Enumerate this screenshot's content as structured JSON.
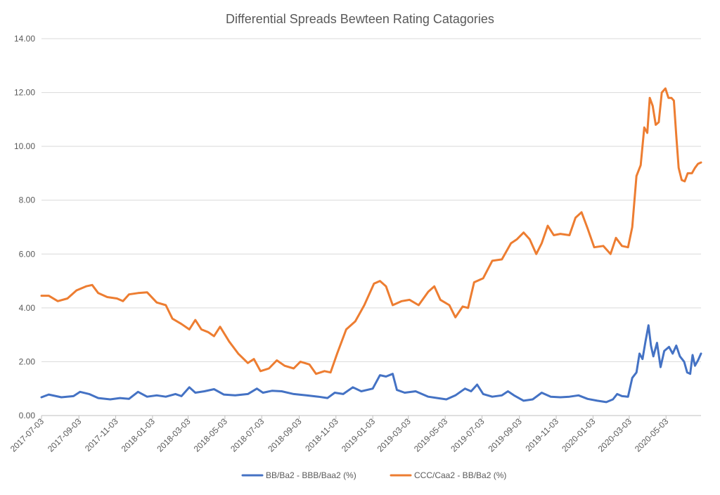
{
  "chart_data": {
    "type": "line",
    "title": "Differential Spreads Bewteen Rating Catagories",
    "xlabel": "",
    "ylabel": "",
    "ylim": [
      0,
      14
    ],
    "yticks": [
      "0.00",
      "2.00",
      "4.00",
      "6.00",
      "8.00",
      "10.00",
      "12.00",
      "14.00"
    ],
    "xlim": [
      "2017-07-03",
      "2020-06-30"
    ],
    "xticks": [
      "2017-07-03",
      "2017-09-03",
      "2017-11-03",
      "2018-01-03",
      "2018-03-03",
      "2018-05-03",
      "2018-07-03",
      "2018-09-03",
      "2018-11-03",
      "2019-01-03",
      "2019-03-03",
      "2019-05-03",
      "2019-07-03",
      "2019-09-03",
      "2019-11-03",
      "2020-01-03",
      "2020-03-03",
      "2020-05-03"
    ],
    "grid": "horizontal",
    "legend": "bottom",
    "series": [
      {
        "name": "BB/Ba2 - BBB/Baa2 (%)",
        "color": "#4472C4",
        "points": [
          [
            "2017-07-03",
            0.68
          ],
          [
            "2017-07-15",
            0.78
          ],
          [
            "2017-08-05",
            0.68
          ],
          [
            "2017-08-25",
            0.72
          ],
          [
            "2017-09-05",
            0.88
          ],
          [
            "2017-09-20",
            0.8
          ],
          [
            "2017-10-05",
            0.65
          ],
          [
            "2017-10-25",
            0.6
          ],
          [
            "2017-11-10",
            0.65
          ],
          [
            "2017-11-25",
            0.62
          ],
          [
            "2017-12-10",
            0.88
          ],
          [
            "2017-12-25",
            0.7
          ],
          [
            "2018-01-10",
            0.75
          ],
          [
            "2018-01-25",
            0.7
          ],
          [
            "2018-02-10",
            0.8
          ],
          [
            "2018-02-20",
            0.72
          ],
          [
            "2018-03-05",
            1.05
          ],
          [
            "2018-03-15",
            0.85
          ],
          [
            "2018-03-30",
            0.9
          ],
          [
            "2018-04-15",
            0.98
          ],
          [
            "2018-05-01",
            0.78
          ],
          [
            "2018-05-20",
            0.75
          ],
          [
            "2018-06-10",
            0.8
          ],
          [
            "2018-06-25",
            1.0
          ],
          [
            "2018-07-05",
            0.85
          ],
          [
            "2018-07-20",
            0.92
          ],
          [
            "2018-08-05",
            0.9
          ],
          [
            "2018-08-25",
            0.8
          ],
          [
            "2018-09-15",
            0.75
          ],
          [
            "2018-10-05",
            0.7
          ],
          [
            "2018-10-20",
            0.65
          ],
          [
            "2018-11-01",
            0.85
          ],
          [
            "2018-11-15",
            0.8
          ],
          [
            "2018-12-01",
            1.05
          ],
          [
            "2018-12-15",
            0.9
          ],
          [
            "2019-01-03",
            1.0
          ],
          [
            "2019-01-15",
            1.5
          ],
          [
            "2019-01-25",
            1.45
          ],
          [
            "2019-02-05",
            1.55
          ],
          [
            "2019-02-12",
            0.95
          ],
          [
            "2019-02-25",
            0.85
          ],
          [
            "2019-03-15",
            0.9
          ],
          [
            "2019-04-05",
            0.7
          ],
          [
            "2019-04-20",
            0.65
          ],
          [
            "2019-05-05",
            0.6
          ],
          [
            "2019-05-20",
            0.75
          ],
          [
            "2019-06-05",
            1.0
          ],
          [
            "2019-06-15",
            0.9
          ],
          [
            "2019-06-25",
            1.15
          ],
          [
            "2019-07-05",
            0.8
          ],
          [
            "2019-07-20",
            0.7
          ],
          [
            "2019-08-05",
            0.75
          ],
          [
            "2019-08-15",
            0.9
          ],
          [
            "2019-08-25",
            0.75
          ],
          [
            "2019-09-10",
            0.55
          ],
          [
            "2019-09-25",
            0.6
          ],
          [
            "2019-10-10",
            0.85
          ],
          [
            "2019-10-25",
            0.7
          ],
          [
            "2019-11-10",
            0.68
          ],
          [
            "2019-11-25",
            0.7
          ],
          [
            "2019-12-10",
            0.75
          ],
          [
            "2019-12-25",
            0.62
          ],
          [
            "2020-01-10",
            0.55
          ],
          [
            "2020-01-25",
            0.5
          ],
          [
            "2020-02-05",
            0.6
          ],
          [
            "2020-02-12",
            0.8
          ],
          [
            "2020-02-20",
            0.72
          ],
          [
            "2020-03-01",
            0.7
          ],
          [
            "2020-03-08",
            1.4
          ],
          [
            "2020-03-15",
            1.6
          ],
          [
            "2020-03-20",
            2.3
          ],
          [
            "2020-03-25",
            2.1
          ],
          [
            "2020-03-30",
            2.75
          ],
          [
            "2020-04-04",
            3.35
          ],
          [
            "2020-04-08",
            2.6
          ],
          [
            "2020-04-12",
            2.2
          ],
          [
            "2020-04-18",
            2.7
          ],
          [
            "2020-04-24",
            1.8
          ],
          [
            "2020-04-30",
            2.4
          ],
          [
            "2020-05-08",
            2.55
          ],
          [
            "2020-05-14",
            2.3
          ],
          [
            "2020-05-20",
            2.6
          ],
          [
            "2020-05-26",
            2.2
          ],
          [
            "2020-06-02",
            2.0
          ],
          [
            "2020-06-07",
            1.6
          ],
          [
            "2020-06-12",
            1.55
          ],
          [
            "2020-06-16",
            2.25
          ],
          [
            "2020-06-20",
            1.85
          ],
          [
            "2020-06-25",
            2.05
          ],
          [
            "2020-06-30",
            2.3
          ]
        ]
      },
      {
        "name": "CCC/Caa2 - BB/Ba2 (%)",
        "color": "#ED7D31",
        "points": [
          [
            "2017-07-03",
            4.45
          ],
          [
            "2017-07-15",
            4.45
          ],
          [
            "2017-07-30",
            4.25
          ],
          [
            "2017-08-15",
            4.35
          ],
          [
            "2017-08-30",
            4.65
          ],
          [
            "2017-09-15",
            4.8
          ],
          [
            "2017-09-25",
            4.85
          ],
          [
            "2017-10-05",
            4.55
          ],
          [
            "2017-10-20",
            4.4
          ],
          [
            "2017-11-05",
            4.35
          ],
          [
            "2017-11-15",
            4.25
          ],
          [
            "2017-11-25",
            4.5
          ],
          [
            "2017-12-10",
            4.55
          ],
          [
            "2017-12-25",
            4.58
          ],
          [
            "2018-01-10",
            4.2
          ],
          [
            "2018-01-25",
            4.1
          ],
          [
            "2018-02-05",
            3.6
          ],
          [
            "2018-02-20",
            3.4
          ],
          [
            "2018-03-05",
            3.2
          ],
          [
            "2018-03-15",
            3.55
          ],
          [
            "2018-03-25",
            3.2
          ],
          [
            "2018-04-05",
            3.1
          ],
          [
            "2018-04-15",
            2.95
          ],
          [
            "2018-04-25",
            3.3
          ],
          [
            "2018-05-10",
            2.75
          ],
          [
            "2018-05-25",
            2.3
          ],
          [
            "2018-06-10",
            1.95
          ],
          [
            "2018-06-20",
            2.1
          ],
          [
            "2018-07-01",
            1.65
          ],
          [
            "2018-07-15",
            1.75
          ],
          [
            "2018-07-28",
            2.05
          ],
          [
            "2018-08-10",
            1.85
          ],
          [
            "2018-08-25",
            1.75
          ],
          [
            "2018-09-05",
            2.0
          ],
          [
            "2018-09-20",
            1.9
          ],
          [
            "2018-10-01",
            1.55
          ],
          [
            "2018-10-15",
            1.65
          ],
          [
            "2018-10-25",
            1.6
          ],
          [
            "2018-11-05",
            2.3
          ],
          [
            "2018-11-20",
            3.2
          ],
          [
            "2018-12-05",
            3.5
          ],
          [
            "2018-12-20",
            4.1
          ],
          [
            "2019-01-05",
            4.9
          ],
          [
            "2019-01-15",
            5.0
          ],
          [
            "2019-01-25",
            4.8
          ],
          [
            "2019-02-05",
            4.1
          ],
          [
            "2019-02-20",
            4.25
          ],
          [
            "2019-03-05",
            4.3
          ],
          [
            "2019-03-20",
            4.1
          ],
          [
            "2019-04-05",
            4.6
          ],
          [
            "2019-04-15",
            4.8
          ],
          [
            "2019-04-25",
            4.3
          ],
          [
            "2019-05-10",
            4.1
          ],
          [
            "2019-05-20",
            3.65
          ],
          [
            "2019-06-01",
            4.05
          ],
          [
            "2019-06-10",
            4.0
          ],
          [
            "2019-06-20",
            4.95
          ],
          [
            "2019-07-05",
            5.1
          ],
          [
            "2019-07-20",
            5.75
          ],
          [
            "2019-08-05",
            5.8
          ],
          [
            "2019-08-20",
            6.4
          ],
          [
            "2019-08-30",
            6.55
          ],
          [
            "2019-09-10",
            6.8
          ],
          [
            "2019-09-20",
            6.55
          ],
          [
            "2019-10-01",
            6.0
          ],
          [
            "2019-10-10",
            6.4
          ],
          [
            "2019-10-20",
            7.05
          ],
          [
            "2019-10-30",
            6.7
          ],
          [
            "2019-11-10",
            6.75
          ],
          [
            "2019-11-25",
            6.7
          ],
          [
            "2019-12-05",
            7.35
          ],
          [
            "2019-12-15",
            7.55
          ],
          [
            "2019-12-25",
            6.95
          ],
          [
            "2020-01-05",
            6.25
          ],
          [
            "2020-01-20",
            6.3
          ],
          [
            "2020-02-01",
            6.0
          ],
          [
            "2020-02-10",
            6.6
          ],
          [
            "2020-02-20",
            6.3
          ],
          [
            "2020-03-01",
            6.25
          ],
          [
            "2020-03-08",
            7.0
          ],
          [
            "2020-03-15",
            8.9
          ],
          [
            "2020-03-22",
            9.3
          ],
          [
            "2020-03-28",
            10.7
          ],
          [
            "2020-04-02",
            10.5
          ],
          [
            "2020-04-06",
            11.8
          ],
          [
            "2020-04-11",
            11.5
          ],
          [
            "2020-04-16",
            10.8
          ],
          [
            "2020-04-21",
            10.9
          ],
          [
            "2020-04-26",
            12.0
          ],
          [
            "2020-05-02",
            12.15
          ],
          [
            "2020-05-07",
            11.8
          ],
          [
            "2020-05-12",
            11.8
          ],
          [
            "2020-05-16",
            11.7
          ],
          [
            "2020-05-20",
            10.4
          ],
          [
            "2020-05-24",
            9.2
          ],
          [
            "2020-05-29",
            8.75
          ],
          [
            "2020-06-03",
            8.7
          ],
          [
            "2020-06-08",
            9.0
          ],
          [
            "2020-06-15",
            9.0
          ],
          [
            "2020-06-20",
            9.2
          ],
          [
            "2020-06-25",
            9.35
          ],
          [
            "2020-06-30",
            9.4
          ]
        ]
      }
    ]
  }
}
